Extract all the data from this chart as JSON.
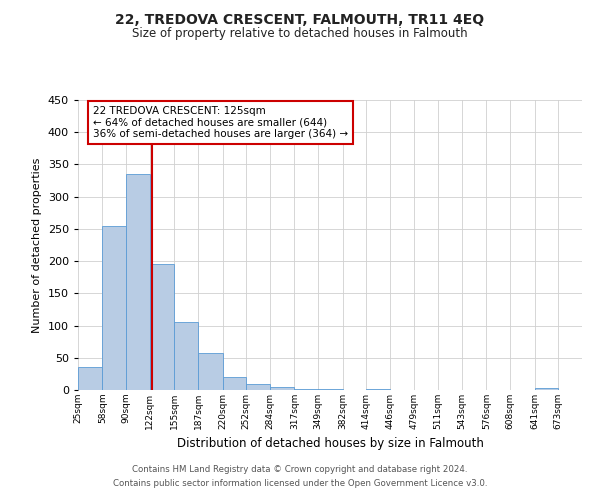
{
  "title": "22, TREDOVA CRESCENT, FALMOUTH, TR11 4EQ",
  "subtitle": "Size of property relative to detached houses in Falmouth",
  "xlabel": "Distribution of detached houses by size in Falmouth",
  "ylabel": "Number of detached properties",
  "bin_labels": [
    "25sqm",
    "58sqm",
    "90sqm",
    "122sqm",
    "155sqm",
    "187sqm",
    "220sqm",
    "252sqm",
    "284sqm",
    "317sqm",
    "349sqm",
    "382sqm",
    "414sqm",
    "446sqm",
    "479sqm",
    "511sqm",
    "543sqm",
    "576sqm",
    "608sqm",
    "641sqm",
    "673sqm"
  ],
  "bin_edges": [
    25,
    58,
    90,
    122,
    155,
    187,
    220,
    252,
    284,
    317,
    349,
    382,
    414,
    446,
    479,
    511,
    543,
    576,
    608,
    641,
    673
  ],
  "bar_heights": [
    35,
    255,
    335,
    195,
    105,
    57,
    20,
    10,
    5,
    2,
    1,
    0,
    1,
    0,
    0,
    0,
    0,
    0,
    0,
    3
  ],
  "bar_color": "#b8cce4",
  "bar_edge_color": "#5b9bd5",
  "property_line_x": 125,
  "property_line_color": "#cc0000",
  "annotation_title": "22 TREDOVA CRESCENT: 125sqm",
  "annotation_line1": "← 64% of detached houses are smaller (644)",
  "annotation_line2": "36% of semi-detached houses are larger (364) →",
  "annotation_box_color": "#cc0000",
  "ylim": [
    0,
    450
  ],
  "yticks": [
    0,
    50,
    100,
    150,
    200,
    250,
    300,
    350,
    400,
    450
  ],
  "footer_line1": "Contains HM Land Registry data © Crown copyright and database right 2024.",
  "footer_line2": "Contains public sector information licensed under the Open Government Licence v3.0.",
  "background_color": "#ffffff",
  "grid_color": "#d0d0d0"
}
